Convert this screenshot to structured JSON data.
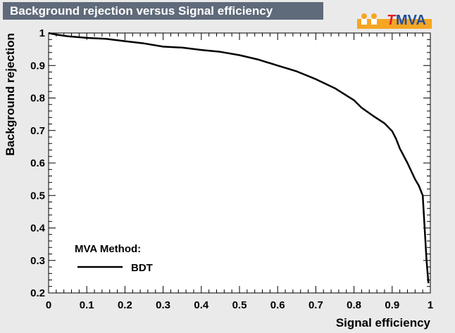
{
  "title": "Background rejection versus Signal efficiency",
  "logo": {
    "text_t": "T",
    "text_mva": "MVA",
    "accent_color": "#f5a623",
    "text_color": "#1f4fa0",
    "t_color": "#e02020"
  },
  "legend": {
    "header": "MVA Method:",
    "entries": [
      "BDT"
    ]
  },
  "chart_data": {
    "type": "line",
    "title": "Background rejection versus Signal efficiency",
    "xlabel": "Signal efficiency",
    "ylabel": "Background rejection",
    "xlim": [
      0,
      1
    ],
    "ylim": [
      0.2,
      1
    ],
    "xticks": [
      "0",
      "0.1",
      "0.2",
      "0.3",
      "0.4",
      "0.5",
      "0.6",
      "0.7",
      "0.8",
      "0.9",
      "1"
    ],
    "yticks": [
      "0.2",
      "0.3",
      "0.4",
      "0.5",
      "0.6",
      "0.7",
      "0.8",
      "0.9",
      "1"
    ],
    "grid": false,
    "legend_position": "bottom-left",
    "series": [
      {
        "name": "BDT",
        "color": "#000000",
        "x": [
          0.0,
          0.02,
          0.05,
          0.1,
          0.15,
          0.2,
          0.25,
          0.3,
          0.35,
          0.4,
          0.45,
          0.5,
          0.55,
          0.6,
          0.65,
          0.7,
          0.75,
          0.8,
          0.82,
          0.85,
          0.88,
          0.9,
          0.91,
          0.92,
          0.94,
          0.96,
          0.97,
          0.98,
          0.985,
          0.99,
          0.995
        ],
        "y": [
          1.0,
          0.995,
          0.99,
          0.985,
          0.982,
          0.975,
          0.968,
          0.958,
          0.955,
          0.948,
          0.942,
          0.932,
          0.918,
          0.9,
          0.882,
          0.858,
          0.83,
          0.793,
          0.77,
          0.745,
          0.722,
          0.698,
          0.675,
          0.645,
          0.6,
          0.55,
          0.53,
          0.5,
          0.4,
          0.3,
          0.23
        ]
      }
    ]
  }
}
